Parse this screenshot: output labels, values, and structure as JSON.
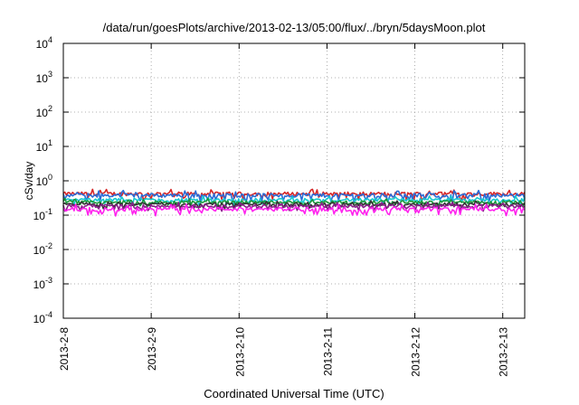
{
  "chart_data": {
    "type": "line",
    "title": "/data/run/goesPlots/archive/2013-02-13/05:00/flux/../bryn/5daysMoon.plot",
    "xlabel": "Coordinated Universal Time (UTC)",
    "ylabel": "cSv/day",
    "yscale": "log",
    "ylim": [
      0.0001,
      10000
    ],
    "xlim": [
      "2013-02-08",
      "2013-02-13 06:00"
    ],
    "grid": true,
    "y_ticks": [
      {
        "mantissa": "10",
        "exp": "-4",
        "value": 0.0001
      },
      {
        "mantissa": "10",
        "exp": "-3",
        "value": 0.001
      },
      {
        "mantissa": "10",
        "exp": "-2",
        "value": 0.01
      },
      {
        "mantissa": "10",
        "exp": "-1",
        "value": 0.1
      },
      {
        "mantissa": "10",
        "exp": "0",
        "value": 1
      },
      {
        "mantissa": "10",
        "exp": "1",
        "value": 10
      },
      {
        "mantissa": "10",
        "exp": "2",
        "value": 100
      },
      {
        "mantissa": "10",
        "exp": "3",
        "value": 1000
      },
      {
        "mantissa": "10",
        "exp": "4",
        "value": 10000
      }
    ],
    "x_ticks": [
      {
        "label": "2013-2-8",
        "value": "2013-02-08"
      },
      {
        "label": "2013-2-9",
        "value": "2013-02-09"
      },
      {
        "label": "2013-2-10",
        "value": "2013-02-10"
      },
      {
        "label": "2013-2-11",
        "value": "2013-02-11"
      },
      {
        "label": "2013-2-12",
        "value": "2013-02-12"
      },
      {
        "label": "2013-2-13",
        "value": "2013-02-13"
      }
    ],
    "series": [
      {
        "color": "#d62728",
        "level": 0.42,
        "jitter": 0.12
      },
      {
        "color": "#2b6cd6",
        "level": 0.38,
        "jitter": 0.13
      },
      {
        "color": "#18c8d0",
        "level": 0.28,
        "jitter": 0.1
      },
      {
        "color": "#1a9a3a",
        "level": 0.24,
        "jitter": 0.1
      },
      {
        "color": "#333333",
        "level": 0.21,
        "jitter": 0.09
      },
      {
        "color": "#8a1f8a",
        "level": 0.185,
        "jitter": 0.1
      },
      {
        "color": "#ff22ee",
        "level": 0.15,
        "jitter": 0.13
      }
    ]
  }
}
